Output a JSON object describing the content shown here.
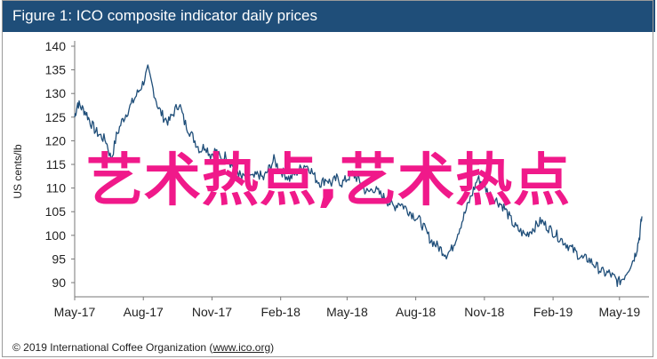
{
  "header": {
    "title": "Figure 1: ICO composite indicator daily prices"
  },
  "footer": {
    "copyright": "© 2019 International Coffee Organization (",
    "link": "www.ico.org",
    "suffix": ")"
  },
  "overlay": {
    "text": "艺术热点,艺术热点"
  },
  "colors": {
    "header_bg": "#1f4e79",
    "line": "#1f4e79",
    "overlay": "#f0198a"
  },
  "chart_data": {
    "type": "line",
    "title": "Figure 1: ICO composite indicator daily prices",
    "xlabel": "",
    "ylabel": "US cents/lb",
    "x_ticks": [
      "May-17",
      "Aug-17",
      "Nov-17",
      "Feb-18",
      "May-18",
      "Aug-18",
      "Nov-18",
      "Feb-19",
      "May-19"
    ],
    "y_ticks": [
      90,
      95,
      100,
      105,
      110,
      115,
      120,
      125,
      130,
      135,
      140
    ],
    "ylim": [
      87,
      140
    ],
    "xlim": [
      "2017-05-01",
      "2019-05-31"
    ],
    "grid": false,
    "series": [
      {
        "values": [
          [
            "2017-05-01",
            125
          ],
          [
            "2017-05-05",
            128
          ],
          [
            "2017-05-10",
            127
          ],
          [
            "2017-05-16",
            126
          ],
          [
            "2017-05-22",
            124
          ],
          [
            "2017-05-29",
            122
          ],
          [
            "2017-06-05",
            121
          ],
          [
            "2017-06-12",
            120
          ],
          [
            "2017-06-19",
            116
          ],
          [
            "2017-06-26",
            121
          ],
          [
            "2017-07-03",
            124
          ],
          [
            "2017-07-10",
            126
          ],
          [
            "2017-07-17",
            128
          ],
          [
            "2017-07-24",
            130
          ],
          [
            "2017-07-31",
            132
          ],
          [
            "2017-08-07",
            135
          ],
          [
            "2017-08-14",
            131
          ],
          [
            "2017-08-21",
            127
          ],
          [
            "2017-08-28",
            125
          ],
          [
            "2017-09-04",
            124
          ],
          [
            "2017-09-11",
            126
          ],
          [
            "2017-09-18",
            128
          ],
          [
            "2017-09-25",
            124
          ],
          [
            "2017-10-02",
            122
          ],
          [
            "2017-10-09",
            120
          ],
          [
            "2017-10-16",
            118
          ],
          [
            "2017-10-23",
            119
          ],
          [
            "2017-10-30",
            117
          ],
          [
            "2017-11-06",
            118
          ],
          [
            "2017-11-13",
            116
          ],
          [
            "2017-11-20",
            117
          ],
          [
            "2017-11-27",
            115
          ],
          [
            "2017-12-04",
            114
          ],
          [
            "2017-12-11",
            112
          ],
          [
            "2017-12-18",
            113
          ],
          [
            "2017-12-26",
            112
          ],
          [
            "2018-01-02",
            113
          ],
          [
            "2018-01-09",
            112
          ],
          [
            "2018-01-16",
            114
          ],
          [
            "2018-01-23",
            116
          ],
          [
            "2018-01-30",
            114
          ],
          [
            "2018-02-06",
            113
          ],
          [
            "2018-02-13",
            112
          ],
          [
            "2018-02-20",
            113
          ],
          [
            "2018-02-27",
            114
          ],
          [
            "2018-03-06",
            115
          ],
          [
            "2018-03-13",
            114
          ],
          [
            "2018-03-20",
            112
          ],
          [
            "2018-03-27",
            111
          ],
          [
            "2018-04-03",
            112
          ],
          [
            "2018-04-10",
            111
          ],
          [
            "2018-04-17",
            112
          ],
          [
            "2018-04-24",
            111
          ],
          [
            "2018-05-01",
            112
          ],
          [
            "2018-05-08",
            113
          ],
          [
            "2018-05-15",
            112
          ],
          [
            "2018-05-22",
            110
          ],
          [
            "2018-05-29",
            109
          ],
          [
            "2018-06-05",
            110
          ],
          [
            "2018-06-12",
            109
          ],
          [
            "2018-06-19",
            108
          ],
          [
            "2018-06-26",
            107
          ],
          [
            "2018-07-03",
            106
          ],
          [
            "2018-07-10",
            107
          ],
          [
            "2018-07-17",
            106
          ],
          [
            "2018-07-24",
            105
          ],
          [
            "2018-07-31",
            104
          ],
          [
            "2018-08-07",
            103
          ],
          [
            "2018-08-14",
            101
          ],
          [
            "2018-08-21",
            99
          ],
          [
            "2018-08-28",
            98
          ],
          [
            "2018-09-04",
            97
          ],
          [
            "2018-09-11",
            96
          ],
          [
            "2018-09-18",
            97
          ],
          [
            "2018-09-25",
            100
          ],
          [
            "2018-10-02",
            103
          ],
          [
            "2018-10-09",
            106
          ],
          [
            "2018-10-16",
            109
          ],
          [
            "2018-10-23",
            112
          ],
          [
            "2018-10-30",
            111
          ],
          [
            "2018-11-06",
            109
          ],
          [
            "2018-11-13",
            108
          ],
          [
            "2018-11-20",
            107
          ],
          [
            "2018-11-27",
            106
          ],
          [
            "2018-12-04",
            104
          ],
          [
            "2018-12-11",
            102
          ],
          [
            "2018-12-18",
            101
          ],
          [
            "2018-12-26",
            100
          ],
          [
            "2019-01-02",
            101
          ],
          [
            "2019-01-09",
            102
          ],
          [
            "2019-01-16",
            103
          ],
          [
            "2019-01-23",
            102
          ],
          [
            "2019-01-30",
            101
          ],
          [
            "2019-02-06",
            100
          ],
          [
            "2019-02-13",
            99
          ],
          [
            "2019-02-20",
            98
          ],
          [
            "2019-02-27",
            97
          ],
          [
            "2019-03-06",
            96
          ],
          [
            "2019-03-13",
            95
          ],
          [
            "2019-03-20",
            95
          ],
          [
            "2019-03-27",
            94
          ],
          [
            "2019-04-03",
            93
          ],
          [
            "2019-04-10",
            92
          ],
          [
            "2019-04-17",
            92
          ],
          [
            "2019-04-24",
            91
          ],
          [
            "2019-04-29",
            90
          ],
          [
            "2019-05-06",
            91
          ],
          [
            "2019-05-13",
            93
          ],
          [
            "2019-05-20",
            95
          ],
          [
            "2019-05-24",
            97
          ],
          [
            "2019-05-28",
            100
          ],
          [
            "2019-05-31",
            104
          ]
        ]
      }
    ]
  }
}
